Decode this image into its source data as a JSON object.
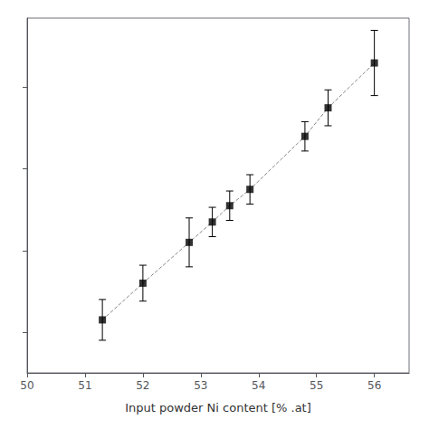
{
  "chart_data": {
    "type": "scatter",
    "xlabel": "Input powder Ni content [% .at]",
    "x": [
      51.3,
      52.0,
      52.8,
      53.2,
      53.5,
      53.85,
      54.8,
      55.2,
      56.0
    ],
    "series": [
      {
        "type": "line",
        "color": "#888888",
        "line_style": "dashed",
        "values": [
          51.15,
          51.6,
          52.1,
          52.35,
          52.55,
          52.75,
          53.4,
          53.75,
          54.3
        ]
      },
      {
        "type": "scatter",
        "color": "#000000",
        "marker": "square",
        "values": [
          51.15,
          51.6,
          52.1,
          52.35,
          52.55,
          52.75,
          53.4,
          53.75,
          54.3
        ],
        "yerr": [
          0.25,
          0.22,
          0.3,
          0.18,
          0.18,
          0.18,
          0.18,
          0.22,
          0.4
        ]
      }
    ],
    "xlim": [
      50.0,
      56.6
    ],
    "ylim": [
      50.5,
      54.85
    ],
    "xticks": [
      50,
      51,
      52,
      53,
      54,
      55,
      56
    ],
    "yticks": [
      51,
      52,
      53,
      54
    ],
    "tick_labels": "x",
    "grid": false
  }
}
